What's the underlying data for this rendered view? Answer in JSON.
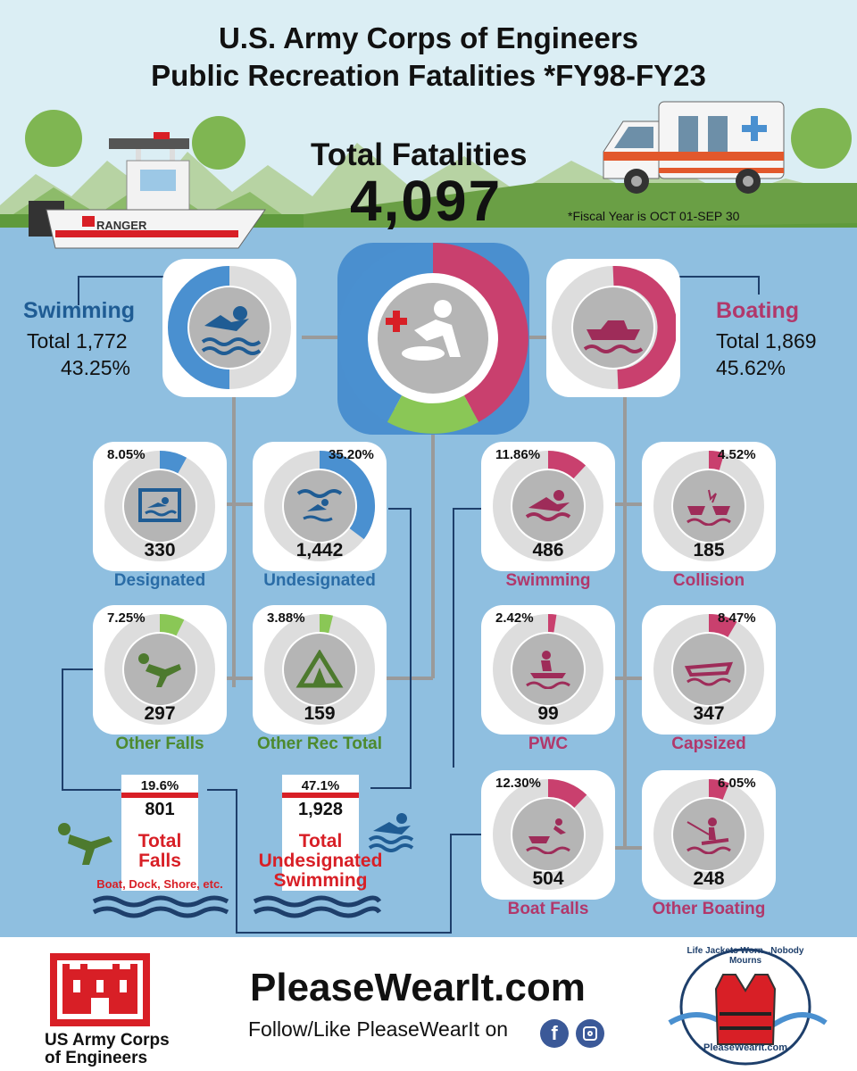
{
  "header": {
    "title_line1": "U.S. Army Corps of Engineers",
    "title_line2": "Public Recreation Fatalities *FY98-FY23",
    "total_label": "Total Fatalities",
    "total_value": "4,097",
    "fiscal_note": "*Fiscal Year is OCT 01-SEP 30",
    "boat_label": "RANGER"
  },
  "swimming": {
    "title": "Swimming",
    "total": "Total 1,772",
    "percent": "43.25%"
  },
  "boating": {
    "title": "Boating",
    "total": "Total 1,869",
    "percent": "45.62%"
  },
  "categories": [
    {
      "pct": "8.05%",
      "count": "330",
      "label": "Designated",
      "value": 0.0805
    },
    {
      "pct": "35.20%",
      "count": "1,442",
      "label": "Undesignated",
      "value": 0.352
    },
    {
      "pct": "7.25%",
      "count": "297",
      "label": "Other Falls",
      "value": 0.0725
    },
    {
      "pct": "3.88%",
      "count": "159",
      "label": "Other Rec Total",
      "value": 0.0388
    },
    {
      "pct": "11.86%",
      "count": "486",
      "label": "Swimming",
      "value": 0.1186
    },
    {
      "pct": "4.52%",
      "count": "185",
      "label": "Collision",
      "value": 0.0452
    },
    {
      "pct": "2.42%",
      "count": "99",
      "label": "PWC",
      "value": 0.0242
    },
    {
      "pct": "8.47%",
      "count": "347",
      "label": "Capsized",
      "value": 0.0847
    },
    {
      "pct": "12.30%",
      "count": "504",
      "label": "Boat Falls",
      "value": 0.123
    },
    {
      "pct": "6.05%",
      "count": "248",
      "label": "Other Boating",
      "value": 0.0605
    }
  ],
  "summaries": [
    {
      "pct": "19.6%",
      "count": "801",
      "label1": "Total",
      "label2": "Falls",
      "label3": "Boat, Dock, Shore, etc."
    },
    {
      "pct": "47.1%",
      "count": "1,928",
      "label1": "Total",
      "label2": "Undesignated",
      "label3": "Swimming"
    }
  ],
  "footer": {
    "org_line1": "US Army Corps",
    "org_line2": "of Engineers",
    "website": "PleaseWearIt.com",
    "follow": "Follow/Like PleaseWearIt on",
    "badge_text": "Life Jackets Worn...Nobody Mourns",
    "badge_site": "PleaseWearIt.com"
  },
  "colors": {
    "blue": "#4a90d0",
    "magenta": "#c9406e",
    "green": "#8ac756",
    "red": "#d81f26"
  }
}
